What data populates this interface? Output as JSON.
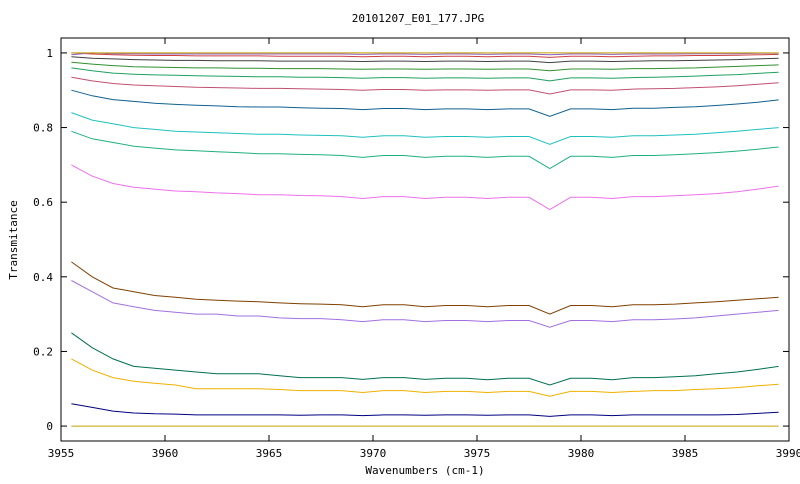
{
  "chart_data": {
    "type": "line",
    "title": "20101207_E01_177.JPG",
    "xlabel": "Wavenumbers (cm-1)",
    "ylabel": "Transmitance",
    "xlim": [
      3955,
      3990
    ],
    "ylim": [
      -0.04,
      1.04
    ],
    "xticks": [
      "3955",
      "3960",
      "3965",
      "3970",
      "3975",
      "3980",
      "3985",
      "3990"
    ],
    "yticks": [
      "0",
      "0.2",
      "0.4",
      "0.6",
      "0.8",
      "1"
    ],
    "grid": false,
    "legend": "none",
    "x": [
      3955.5,
      3956.5,
      3957.5,
      3958.5,
      3959.5,
      3960.5,
      3961.5,
      3962.5,
      3963.5,
      3964.5,
      3965.5,
      3966.5,
      3967.5,
      3968.5,
      3969.5,
      3970.5,
      3971.5,
      3972.5,
      3973.5,
      3974.5,
      3975.5,
      3976.5,
      3977.5,
      3978.5,
      3979.5,
      3980.5,
      3981.5,
      3982.5,
      3983.5,
      3984.5,
      3985.5,
      3986.5,
      3987.5,
      3988.5,
      3989.5
    ],
    "series": [
      {
        "color": "#000080",
        "values": [
          0.06,
          0.05,
          0.04,
          0.035,
          0.033,
          0.032,
          0.03,
          0.03,
          0.03,
          0.03,
          0.03,
          0.029,
          0.03,
          0.03,
          0.028,
          0.03,
          0.03,
          0.029,
          0.03,
          0.03,
          0.029,
          0.03,
          0.03,
          0.026,
          0.03,
          0.03,
          0.028,
          0.03,
          0.03,
          0.03,
          0.03,
          0.03,
          0.031,
          0.034,
          0.037
        ]
      },
      {
        "color": "#f0b000",
        "values": [
          0.18,
          0.15,
          0.13,
          0.12,
          0.115,
          0.11,
          0.1,
          0.1,
          0.1,
          0.1,
          0.098,
          0.095,
          0.095,
          0.095,
          0.09,
          0.095,
          0.095,
          0.09,
          0.093,
          0.093,
          0.09,
          0.093,
          0.093,
          0.08,
          0.093,
          0.093,
          0.09,
          0.093,
          0.095,
          0.095,
          0.098,
          0.1,
          0.103,
          0.108,
          0.112
        ]
      },
      {
        "color": "#007050",
        "values": [
          0.25,
          0.21,
          0.18,
          0.16,
          0.155,
          0.15,
          0.145,
          0.14,
          0.14,
          0.14,
          0.135,
          0.13,
          0.13,
          0.13,
          0.125,
          0.13,
          0.13,
          0.125,
          0.128,
          0.128,
          0.124,
          0.128,
          0.128,
          0.11,
          0.128,
          0.128,
          0.124,
          0.13,
          0.13,
          0.132,
          0.135,
          0.14,
          0.145,
          0.152,
          0.16
        ]
      },
      {
        "color": "#a070e0",
        "values": [
          0.39,
          0.36,
          0.33,
          0.32,
          0.31,
          0.305,
          0.3,
          0.3,
          0.295,
          0.295,
          0.29,
          0.288,
          0.288,
          0.285,
          0.28,
          0.285,
          0.285,
          0.28,
          0.283,
          0.283,
          0.28,
          0.283,
          0.283,
          0.265,
          0.283,
          0.283,
          0.28,
          0.285,
          0.285,
          0.287,
          0.29,
          0.295,
          0.3,
          0.305,
          0.31
        ]
      },
      {
        "color": "#804000",
        "values": [
          0.44,
          0.4,
          0.37,
          0.36,
          0.35,
          0.345,
          0.34,
          0.337,
          0.335,
          0.333,
          0.33,
          0.328,
          0.327,
          0.325,
          0.32,
          0.325,
          0.325,
          0.32,
          0.323,
          0.323,
          0.32,
          0.323,
          0.323,
          0.3,
          0.323,
          0.323,
          0.32,
          0.325,
          0.325,
          0.327,
          0.33,
          0.333,
          0.337,
          0.341,
          0.345
        ]
      },
      {
        "color": "#ee70ee",
        "values": [
          0.7,
          0.67,
          0.65,
          0.64,
          0.635,
          0.63,
          0.628,
          0.625,
          0.623,
          0.62,
          0.62,
          0.618,
          0.617,
          0.615,
          0.61,
          0.615,
          0.615,
          0.61,
          0.613,
          0.613,
          0.61,
          0.613,
          0.613,
          0.58,
          0.613,
          0.613,
          0.61,
          0.615,
          0.615,
          0.617,
          0.62,
          0.623,
          0.628,
          0.635,
          0.643
        ]
      },
      {
        "color": "#20b080",
        "values": [
          0.79,
          0.77,
          0.76,
          0.75,
          0.745,
          0.74,
          0.738,
          0.735,
          0.733,
          0.73,
          0.73,
          0.728,
          0.727,
          0.725,
          0.72,
          0.725,
          0.725,
          0.72,
          0.723,
          0.723,
          0.72,
          0.723,
          0.723,
          0.69,
          0.723,
          0.723,
          0.72,
          0.725,
          0.725,
          0.727,
          0.73,
          0.733,
          0.737,
          0.742,
          0.748
        ]
      },
      {
        "color": "#20c0c0",
        "values": [
          0.84,
          0.82,
          0.81,
          0.8,
          0.795,
          0.79,
          0.788,
          0.786,
          0.784,
          0.782,
          0.782,
          0.78,
          0.779,
          0.778,
          0.774,
          0.778,
          0.778,
          0.774,
          0.776,
          0.776,
          0.774,
          0.776,
          0.776,
          0.755,
          0.776,
          0.776,
          0.774,
          0.778,
          0.778,
          0.78,
          0.782,
          0.786,
          0.79,
          0.795,
          0.8
        ]
      },
      {
        "color": "#106090",
        "values": [
          0.9,
          0.885,
          0.875,
          0.87,
          0.865,
          0.862,
          0.86,
          0.858,
          0.856,
          0.855,
          0.855,
          0.853,
          0.852,
          0.851,
          0.848,
          0.851,
          0.851,
          0.848,
          0.85,
          0.85,
          0.848,
          0.85,
          0.85,
          0.83,
          0.85,
          0.85,
          0.848,
          0.852,
          0.852,
          0.854,
          0.856,
          0.859,
          0.863,
          0.868,
          0.874
        ]
      },
      {
        "color": "#c05070",
        "values": [
          0.935,
          0.925,
          0.918,
          0.914,
          0.912,
          0.91,
          0.908,
          0.907,
          0.906,
          0.905,
          0.905,
          0.904,
          0.903,
          0.902,
          0.9,
          0.902,
          0.902,
          0.9,
          0.901,
          0.901,
          0.9,
          0.901,
          0.901,
          0.89,
          0.901,
          0.901,
          0.9,
          0.903,
          0.904,
          0.905,
          0.907,
          0.909,
          0.912,
          0.916,
          0.92
        ]
      },
      {
        "color": "#20a060",
        "values": [
          0.96,
          0.952,
          0.946,
          0.943,
          0.941,
          0.94,
          0.939,
          0.938,
          0.937,
          0.936,
          0.936,
          0.935,
          0.935,
          0.934,
          0.932,
          0.934,
          0.934,
          0.932,
          0.933,
          0.933,
          0.932,
          0.933,
          0.933,
          0.925,
          0.933,
          0.933,
          0.932,
          0.934,
          0.935,
          0.936,
          0.938,
          0.94,
          0.942,
          0.945,
          0.948
        ]
      },
      {
        "color": "#309030",
        "values": [
          0.975,
          0.97,
          0.966,
          0.963,
          0.962,
          0.961,
          0.96,
          0.96,
          0.959,
          0.959,
          0.958,
          0.958,
          0.958,
          0.957,
          0.956,
          0.957,
          0.957,
          0.956,
          0.957,
          0.957,
          0.956,
          0.957,
          0.957,
          0.952,
          0.957,
          0.957,
          0.956,
          0.958,
          0.958,
          0.959,
          0.96,
          0.962,
          0.964,
          0.966,
          0.968
        ]
      },
      {
        "color": "#404040",
        "values": [
          0.99,
          0.986,
          0.984,
          0.982,
          0.981,
          0.98,
          0.98,
          0.979,
          0.979,
          0.979,
          0.978,
          0.978,
          0.978,
          0.978,
          0.977,
          0.978,
          0.978,
          0.977,
          0.978,
          0.978,
          0.977,
          0.978,
          0.978,
          0.974,
          0.978,
          0.978,
          0.977,
          0.978,
          0.979,
          0.979,
          0.98,
          0.981,
          0.982,
          0.984,
          0.986
        ]
      },
      {
        "color": "#d04040",
        "values": [
          1.0,
          0.997,
          0.995,
          0.994,
          0.993,
          0.993,
          0.992,
          0.992,
          0.992,
          0.992,
          0.991,
          0.991,
          0.991,
          0.991,
          0.99,
          0.991,
          0.991,
          0.99,
          0.991,
          0.991,
          0.99,
          0.991,
          0.991,
          0.988,
          0.991,
          0.991,
          0.99,
          0.991,
          0.992,
          0.992,
          0.993,
          0.993,
          0.994,
          0.995,
          0.996
        ]
      },
      {
        "color": "#9060c0",
        "values": [
          0.995,
          1.0,
          0.998,
          0.998,
          0.997,
          0.997,
          0.997,
          0.997,
          0.997,
          0.997,
          0.997,
          0.997,
          0.997,
          0.997,
          0.996,
          0.997,
          0.997,
          0.996,
          0.997,
          0.997,
          0.996,
          0.997,
          0.997,
          0.995,
          0.997,
          0.997,
          0.996,
          0.997,
          0.997,
          0.997,
          0.998,
          0.998,
          0.998,
          0.999,
          0.999
        ]
      },
      {
        "color": "#c8a000",
        "values": [
          1.0,
          1.0,
          1.0,
          1.0,
          1.0,
          1.0,
          1.0,
          1.0,
          1.0,
          1.0,
          1.0,
          1.0,
          1.0,
          1.0,
          1.0,
          1.0,
          1.0,
          1.0,
          1.0,
          1.0,
          1.0,
          1.0,
          1.0,
          1.0,
          1.0,
          1.0,
          1.0,
          1.0,
          1.0,
          1.0,
          1.0,
          1.0,
          1.0,
          1.0,
          1.0
        ]
      },
      {
        "color": "#c8a000",
        "values": [
          0.0,
          0.0,
          0.0,
          0.0,
          0.0,
          0.0,
          0.0,
          0.0,
          0.0,
          0.0,
          0.0,
          0.0,
          0.0,
          0.0,
          0.0,
          0.0,
          0.0,
          0.0,
          0.0,
          0.0,
          0.0,
          0.0,
          0.0,
          0.0,
          0.0,
          0.0,
          0.0,
          0.0,
          0.0,
          0.0,
          0.0,
          0.0,
          0.0,
          0.0,
          0.0
        ]
      }
    ]
  }
}
